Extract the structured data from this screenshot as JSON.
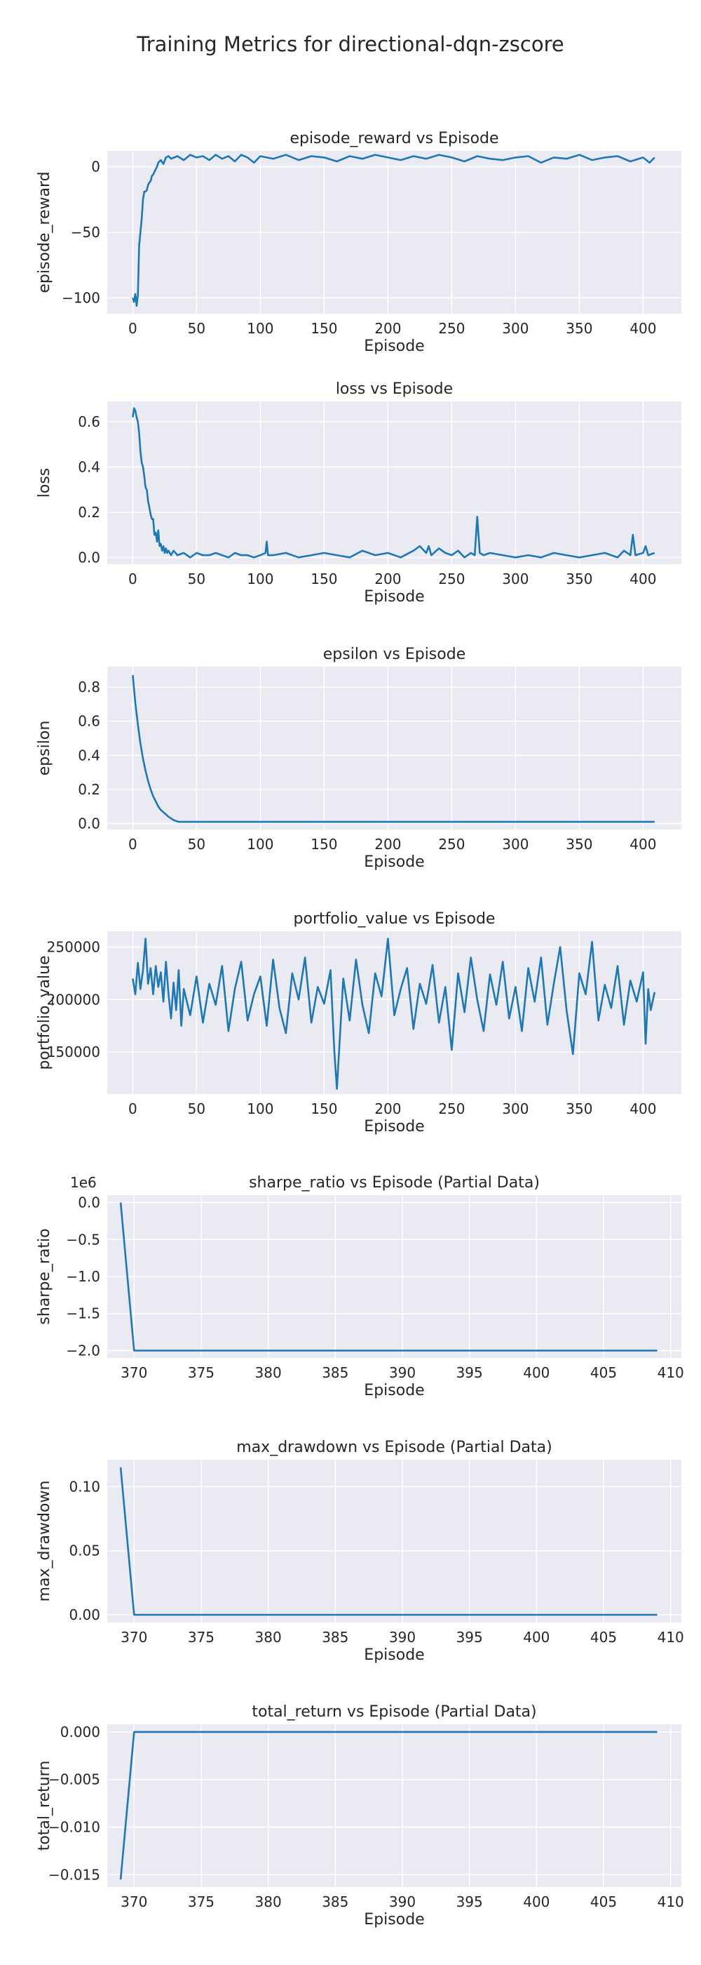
{
  "figure": {
    "title": "Training Metrics for directional-dqn-zscore"
  },
  "chart_data": [
    {
      "type": "line",
      "title": "episode_reward vs Episode",
      "xlabel": "Episode",
      "ylabel": "episode_reward",
      "xlim": [
        -20,
        430
      ],
      "ylim": [
        -112,
        12
      ],
      "xticks": [
        0,
        50,
        100,
        150,
        200,
        250,
        300,
        350,
        400
      ],
      "yticks": [
        0,
        -50,
        -100
      ],
      "ytick_labels": [
        "0",
        "−50",
        "−100"
      ],
      "grid": true,
      "series": [
        {
          "x": [
            0,
            1,
            2,
            3,
            4,
            5,
            6,
            7,
            8,
            9,
            10,
            11,
            12,
            13,
            14,
            15,
            16,
            17,
            18,
            19,
            20,
            22,
            24,
            26,
            28,
            30,
            35,
            40,
            45,
            50,
            55,
            60,
            65,
            70,
            75,
            80,
            85,
            90,
            95,
            100,
            110,
            120,
            130,
            140,
            150,
            160,
            170,
            180,
            190,
            200,
            210,
            220,
            230,
            240,
            250,
            260,
            270,
            280,
            290,
            300,
            310,
            320,
            330,
            340,
            350,
            360,
            370,
            380,
            390,
            400,
            405,
            409
          ],
          "y": [
            -100,
            -103,
            -97,
            -106,
            -98,
            -60,
            -50,
            -40,
            -25,
            -19,
            -19,
            -18,
            -14,
            -12,
            -11,
            -7,
            -6,
            -4,
            -2,
            0,
            3,
            5,
            2,
            7,
            8,
            6,
            8,
            5,
            9,
            7,
            8,
            5,
            9,
            6,
            8,
            4,
            9,
            7,
            3,
            8,
            6,
            9,
            5,
            8,
            7,
            4,
            8,
            6,
            9,
            7,
            5,
            8,
            6,
            9,
            7,
            4,
            8,
            6,
            5,
            7,
            8,
            3,
            7,
            6,
            9,
            5,
            7,
            8,
            4,
            7,
            3,
            7
          ]
        }
      ]
    },
    {
      "type": "line",
      "title": "loss vs Episode",
      "xlabel": "Episode",
      "ylabel": "loss",
      "xlim": [
        -20,
        430
      ],
      "ylim": [
        -0.03,
        0.69
      ],
      "xticks": [
        0,
        50,
        100,
        150,
        200,
        250,
        300,
        350,
        400
      ],
      "yticks": [
        0.0,
        0.2,
        0.4,
        0.6
      ],
      "ytick_labels": [
        "0.0",
        "0.2",
        "0.4",
        "0.6"
      ],
      "grid": true,
      "series": [
        {
          "x": [
            0,
            1,
            2,
            3,
            4,
            5,
            6,
            7,
            8,
            9,
            10,
            11,
            12,
            13,
            14,
            15,
            16,
            17,
            18,
            19,
            20,
            21,
            22,
            23,
            24,
            25,
            26,
            27,
            28,
            30,
            32,
            35,
            40,
            45,
            50,
            55,
            60,
            65,
            70,
            75,
            80,
            85,
            90,
            95,
            100,
            104,
            105,
            106,
            110,
            120,
            130,
            140,
            150,
            160,
            170,
            180,
            190,
            200,
            210,
            220,
            225,
            230,
            232,
            234,
            240,
            245,
            250,
            255,
            260,
            265,
            268,
            270,
            272,
            275,
            280,
            290,
            300,
            310,
            320,
            330,
            340,
            350,
            360,
            370,
            380,
            385,
            390,
            392,
            394,
            400,
            402,
            404,
            409
          ],
          "y": [
            0.62,
            0.66,
            0.65,
            0.62,
            0.6,
            0.55,
            0.47,
            0.42,
            0.4,
            0.36,
            0.31,
            0.3,
            0.25,
            0.22,
            0.19,
            0.17,
            0.17,
            0.1,
            0.11,
            0.07,
            0.12,
            0.05,
            0.06,
            0.03,
            0.05,
            0.02,
            0.04,
            0.02,
            0.03,
            0.01,
            0.03,
            0.01,
            0.02,
            0.0,
            0.02,
            0.01,
            0.01,
            0.02,
            0.01,
            0.0,
            0.02,
            0.01,
            0.01,
            0.0,
            0.01,
            0.02,
            0.07,
            0.01,
            0.01,
            0.02,
            0.0,
            0.01,
            0.02,
            0.01,
            0.0,
            0.03,
            0.01,
            0.02,
            0.0,
            0.03,
            0.05,
            0.02,
            0.05,
            0.01,
            0.04,
            0.02,
            0.01,
            0.03,
            0.0,
            0.02,
            0.01,
            0.18,
            0.02,
            0.01,
            0.02,
            0.01,
            0.0,
            0.01,
            0.0,
            0.02,
            0.01,
            0.0,
            0.01,
            0.02,
            0.0,
            0.03,
            0.01,
            0.1,
            0.01,
            0.02,
            0.05,
            0.01,
            0.02
          ]
        }
      ]
    },
    {
      "type": "line",
      "title": "epsilon vs Episode",
      "xlabel": "Episode",
      "ylabel": "epsilon",
      "xlim": [
        -20,
        430
      ],
      "ylim": [
        -0.035,
        0.92
      ],
      "xticks": [
        0,
        50,
        100,
        150,
        200,
        250,
        300,
        350,
        400
      ],
      "yticks": [
        0.0,
        0.2,
        0.4,
        0.6,
        0.8
      ],
      "ytick_labels": [
        "0.0",
        "0.2",
        "0.4",
        "0.6",
        "0.8"
      ],
      "grid": true,
      "series": [
        {
          "x": [
            0,
            2,
            4,
            6,
            8,
            10,
            12,
            14,
            16,
            18,
            20,
            22,
            25,
            28,
            32,
            36,
            40,
            60,
            100,
            200,
            300,
            409
          ],
          "y": [
            0.87,
            0.71,
            0.58,
            0.47,
            0.38,
            0.31,
            0.25,
            0.2,
            0.16,
            0.13,
            0.1,
            0.08,
            0.06,
            0.04,
            0.02,
            0.01,
            0.01,
            0.01,
            0.01,
            0.01,
            0.01,
            0.01
          ]
        }
      ]
    },
    {
      "type": "line",
      "title": "portfolio_value vs Episode",
      "xlabel": "Episode",
      "ylabel": "portfolio_value",
      "xlim": [
        -20,
        430
      ],
      "ylim": [
        110000,
        265000
      ],
      "xticks": [
        0,
        50,
        100,
        150,
        200,
        250,
        300,
        350,
        400
      ],
      "yticks": [
        150000,
        200000,
        250000
      ],
      "ytick_labels": [
        "150000",
        "200000",
        "250000"
      ],
      "grid": true,
      "series": [
        {
          "x": [
            0,
            2,
            4,
            6,
            8,
            10,
            12,
            14,
            16,
            18,
            20,
            22,
            24,
            26,
            28,
            30,
            32,
            34,
            36,
            38,
            40,
            45,
            50,
            55,
            60,
            65,
            70,
            75,
            80,
            85,
            90,
            95,
            100,
            105,
            110,
            115,
            120,
            125,
            130,
            135,
            140,
            145,
            150,
            155,
            158,
            160,
            165,
            170,
            175,
            180,
            185,
            190,
            195,
            200,
            205,
            210,
            215,
            220,
            225,
            230,
            235,
            240,
            245,
            250,
            255,
            260,
            265,
            270,
            275,
            280,
            285,
            290,
            295,
            300,
            305,
            310,
            315,
            320,
            325,
            330,
            335,
            340,
            345,
            350,
            355,
            360,
            365,
            370,
            375,
            380,
            385,
            390,
            395,
            400,
            402,
            404,
            406,
            409
          ],
          "y": [
            220000,
            205000,
            235000,
            210000,
            228000,
            258000,
            215000,
            230000,
            205000,
            232000,
            212000,
            226000,
            198000,
            236000,
            205000,
            182000,
            216000,
            190000,
            228000,
            175000,
            210000,
            185000,
            222000,
            178000,
            215000,
            195000,
            232000,
            170000,
            210000,
            236000,
            180000,
            205000,
            222000,
            175000,
            238000,
            192000,
            168000,
            225000,
            200000,
            240000,
            178000,
            212000,
            196000,
            228000,
            150000,
            115000,
            220000,
            180000,
            238000,
            195000,
            168000,
            225000,
            203000,
            258000,
            185000,
            210000,
            230000,
            172000,
            215000,
            196000,
            233000,
            178000,
            212000,
            152000,
            225000,
            188000,
            240000,
            200000,
            170000,
            224000,
            195000,
            236000,
            182000,
            212000,
            170000,
            230000,
            198000,
            240000,
            176000,
            215000,
            250000,
            190000,
            148000,
            225000,
            205000,
            255000,
            180000,
            214000,
            192000,
            232000,
            176000,
            218000,
            198000,
            226000,
            158000,
            210000,
            190000,
            207000
          ]
        }
      ]
    },
    {
      "type": "line",
      "title": "sharpe_ratio vs Episode (Partial Data)",
      "xlabel": "Episode",
      "ylabel": "sharpe_ratio",
      "offset_text": "1e6",
      "xlim": [
        368,
        410.8
      ],
      "ylim": [
        -2.1,
        0.1
      ],
      "xticks": [
        370,
        375,
        380,
        385,
        390,
        395,
        400,
        405,
        410
      ],
      "yticks": [
        0.0,
        -0.5,
        -1.0,
        -1.5,
        -2.0
      ],
      "ytick_labels": [
        "0.0",
        "−0.5",
        "−1.0",
        "−1.5",
        "−2.0"
      ],
      "grid": true,
      "series": [
        {
          "x": [
            369,
            370,
            409
          ],
          "y": [
            0.0,
            -2.0,
            -2.0
          ]
        }
      ]
    },
    {
      "type": "line",
      "title": "max_drawdown vs Episode (Partial Data)",
      "xlabel": "Episode",
      "ylabel": "max_drawdown",
      "xlim": [
        368,
        410.8
      ],
      "ylim": [
        -0.006,
        0.121
      ],
      "xticks": [
        370,
        375,
        380,
        385,
        390,
        395,
        400,
        405,
        410
      ],
      "yticks": [
        0.0,
        0.05,
        0.1
      ],
      "ytick_labels": [
        "0.00",
        "0.05",
        "0.10"
      ],
      "grid": true,
      "series": [
        {
          "x": [
            369,
            370,
            409
          ],
          "y": [
            0.115,
            0.0,
            0.0
          ]
        }
      ]
    },
    {
      "type": "line",
      "title": "total_return vs Episode (Partial Data)",
      "xlabel": "Episode",
      "ylabel": "total_return",
      "xlim": [
        368,
        410.8
      ],
      "ylim": [
        -0.0163,
        0.0008
      ],
      "xticks": [
        370,
        375,
        380,
        385,
        390,
        395,
        400,
        405,
        410
      ],
      "yticks": [
        0.0,
        -0.005,
        -0.01,
        -0.015
      ],
      "ytick_labels": [
        "0.000",
        "−0.005",
        "−0.010",
        "−0.015"
      ],
      "grid": true,
      "series": [
        {
          "x": [
            369,
            370,
            409
          ],
          "y": [
            -0.0155,
            0.0,
            0.0
          ]
        }
      ]
    }
  ]
}
